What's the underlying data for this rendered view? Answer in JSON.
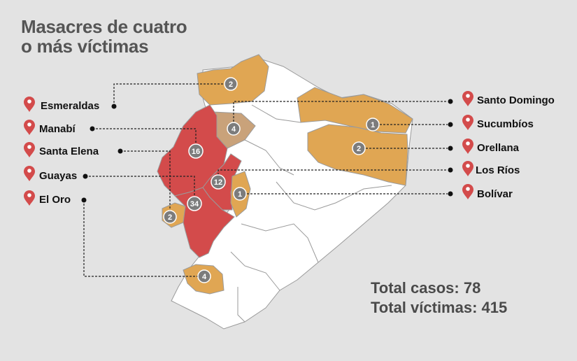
{
  "title": {
    "line1": "Masacres de cuatro",
    "line2": "o más víctimas"
  },
  "totals": {
    "cases": "Total casos: 78",
    "victims": "Total víctimas: 415"
  },
  "colors": {
    "background": "#e3e3e3",
    "high": "#d34b4b",
    "medium": "#e0a653",
    "low": "#c9a27a",
    "none": "#ffffff",
    "border": "#9a9a9a",
    "pin": "#d34b4b",
    "badge": "#7c7c7c"
  },
  "provinces_left": [
    {
      "name": "Esmeraldas",
      "count": "2"
    },
    {
      "name": "Manabí",
      "count": "16"
    },
    {
      "name": "Santa Elena",
      "count": "2"
    },
    {
      "name": "Guayas",
      "count": "34"
    },
    {
      "name": "El Oro",
      "count": "4"
    }
  ],
  "provinces_right": [
    {
      "name": "Santo Domingo",
      "count": "4"
    },
    {
      "name": "Sucumbíos",
      "count": "1"
    },
    {
      "name": "Orellana",
      "count": "2"
    },
    {
      "name": "Los Ríos",
      "count": "12"
    },
    {
      "name": "Bolívar",
      "count": "1"
    }
  ]
}
